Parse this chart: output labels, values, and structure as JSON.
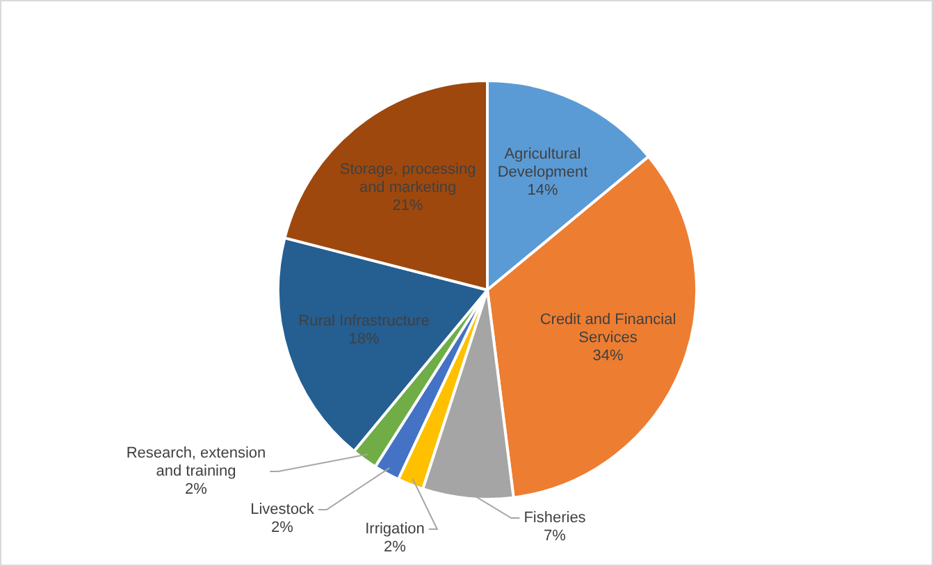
{
  "chart_data": {
    "type": "pie",
    "categories": [
      "Agricultural Development",
      "Credit and Financial Services",
      "Fisheries",
      "Irrigation",
      "Livestock",
      "Research, extension and training",
      "Rural Infrastructure",
      "Storage, processing and marketing"
    ],
    "values": [
      14,
      34,
      7,
      2,
      2,
      2,
      18,
      21
    ],
    "colors": [
      "#5b9bd5",
      "#ed7d31",
      "#a5a5a5",
      "#ffc000",
      "#4472c4",
      "#70ad47",
      "#255e91",
      "#9e480e"
    ],
    "value_labels": [
      "14%",
      "34%",
      "7%",
      "2%",
      "2%",
      "2%",
      "18%",
      "21%"
    ],
    "legend": false
  }
}
